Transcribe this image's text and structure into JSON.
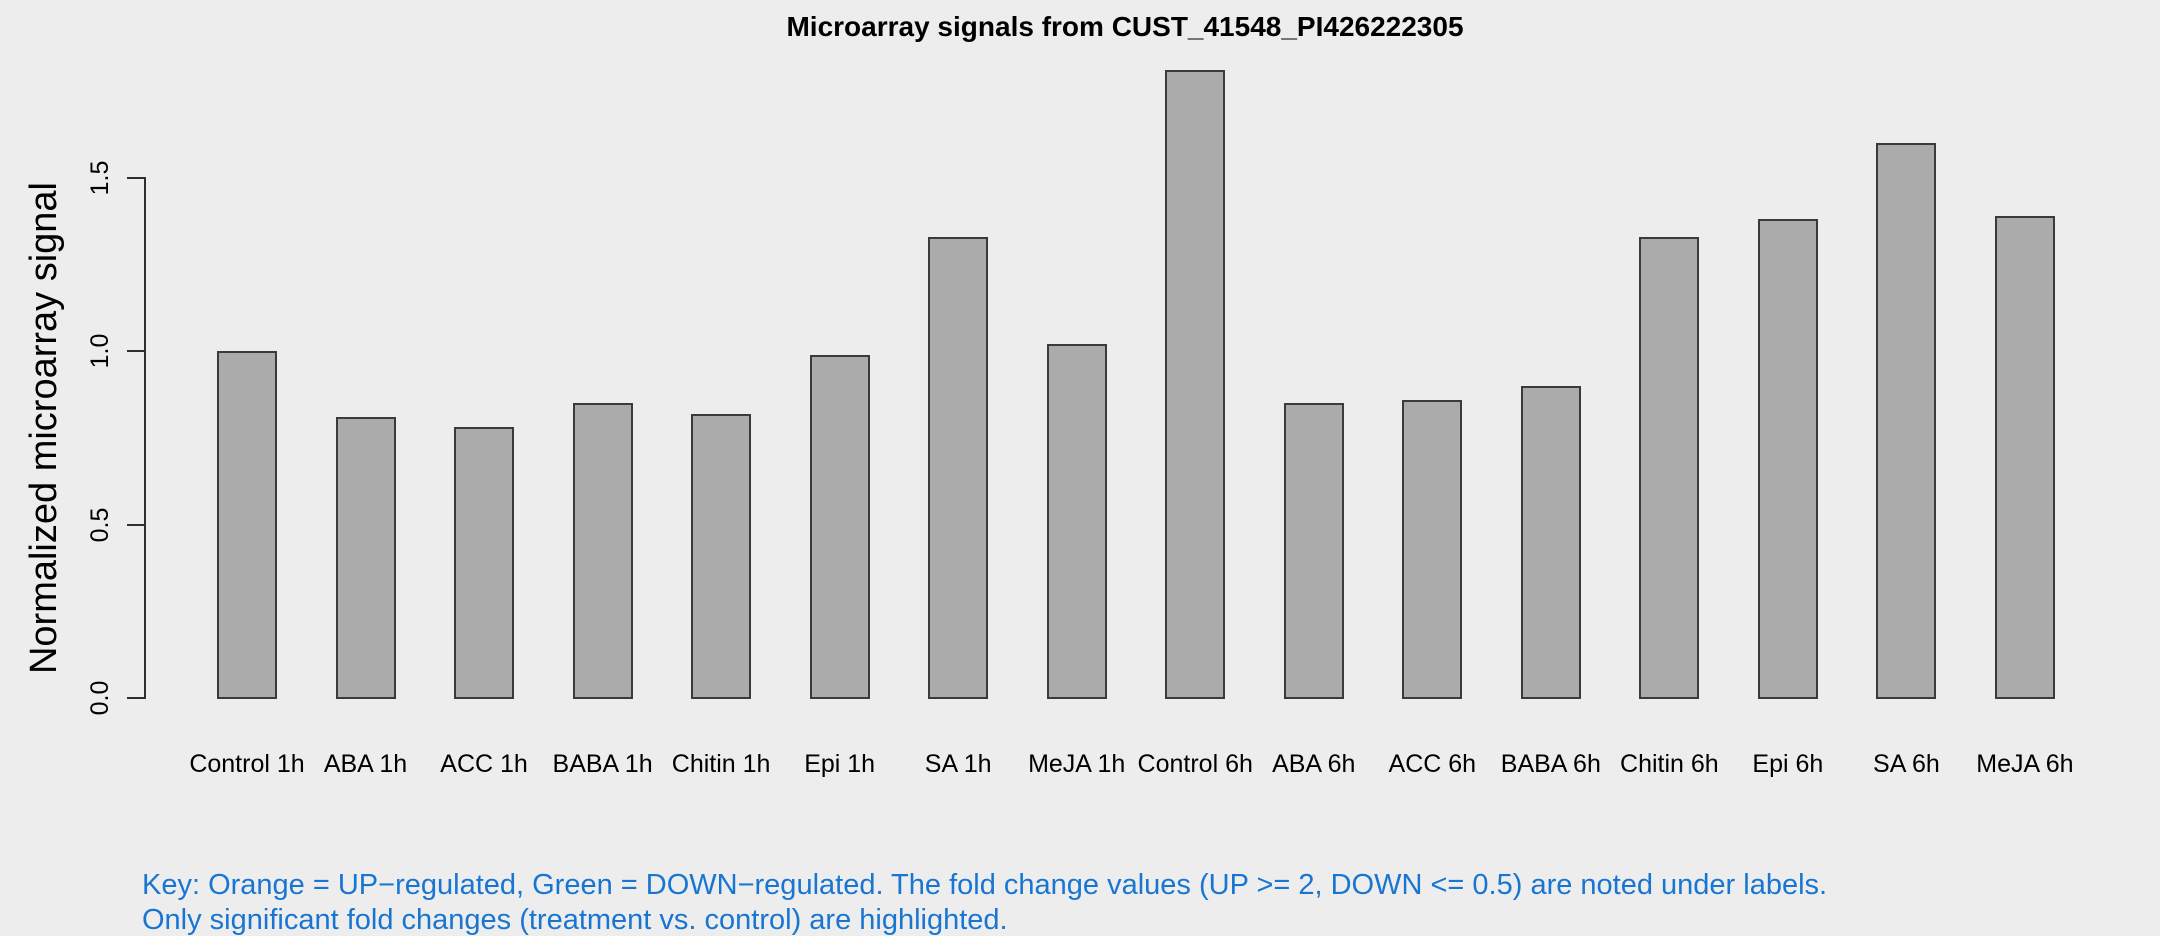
{
  "chart_data": {
    "type": "bar",
    "title": "Microarray signals from CUST_41548_PI426222305",
    "ylabel": "Normalized microarray signal",
    "xlabel": "",
    "categories": [
      "Control 1h",
      "ABA 1h",
      "ACC 1h",
      "BABA 1h",
      "Chitin 1h",
      "Epi 1h",
      "SA 1h",
      "MeJA 1h",
      "Control 6h",
      "ABA 6h",
      "ACC 6h",
      "BABA 6h",
      "Chitin 6h",
      "Epi 6h",
      "SA 6h",
      "MeJA 6h"
    ],
    "values": [
      1.0,
      0.81,
      0.78,
      0.85,
      0.82,
      0.99,
      1.33,
      1.02,
      1.81,
      0.85,
      0.86,
      0.9,
      1.33,
      1.38,
      1.6,
      1.39
    ],
    "ytick_labels": [
      "0.0",
      "0.5",
      "1.0",
      "1.5"
    ],
    "ylim": [
      0,
      1.85
    ],
    "grid": false,
    "legend_position": "none",
    "colors": {
      "background": "#EDEDED",
      "bar_fill": "#ABABAB",
      "bar_border": "#3A3A3A",
      "axis": "#2F2F2F",
      "text": "#000000"
    }
  },
  "footer": {
    "line1": "Key: Orange = UP−regulated, Green = DOWN−regulated. The fold change values (UP >= 2, DOWN <= 0.5) are noted under labels.",
    "line2": "Only significant fold changes (treatment vs. control) are highlighted.",
    "color": "#1876D2"
  }
}
